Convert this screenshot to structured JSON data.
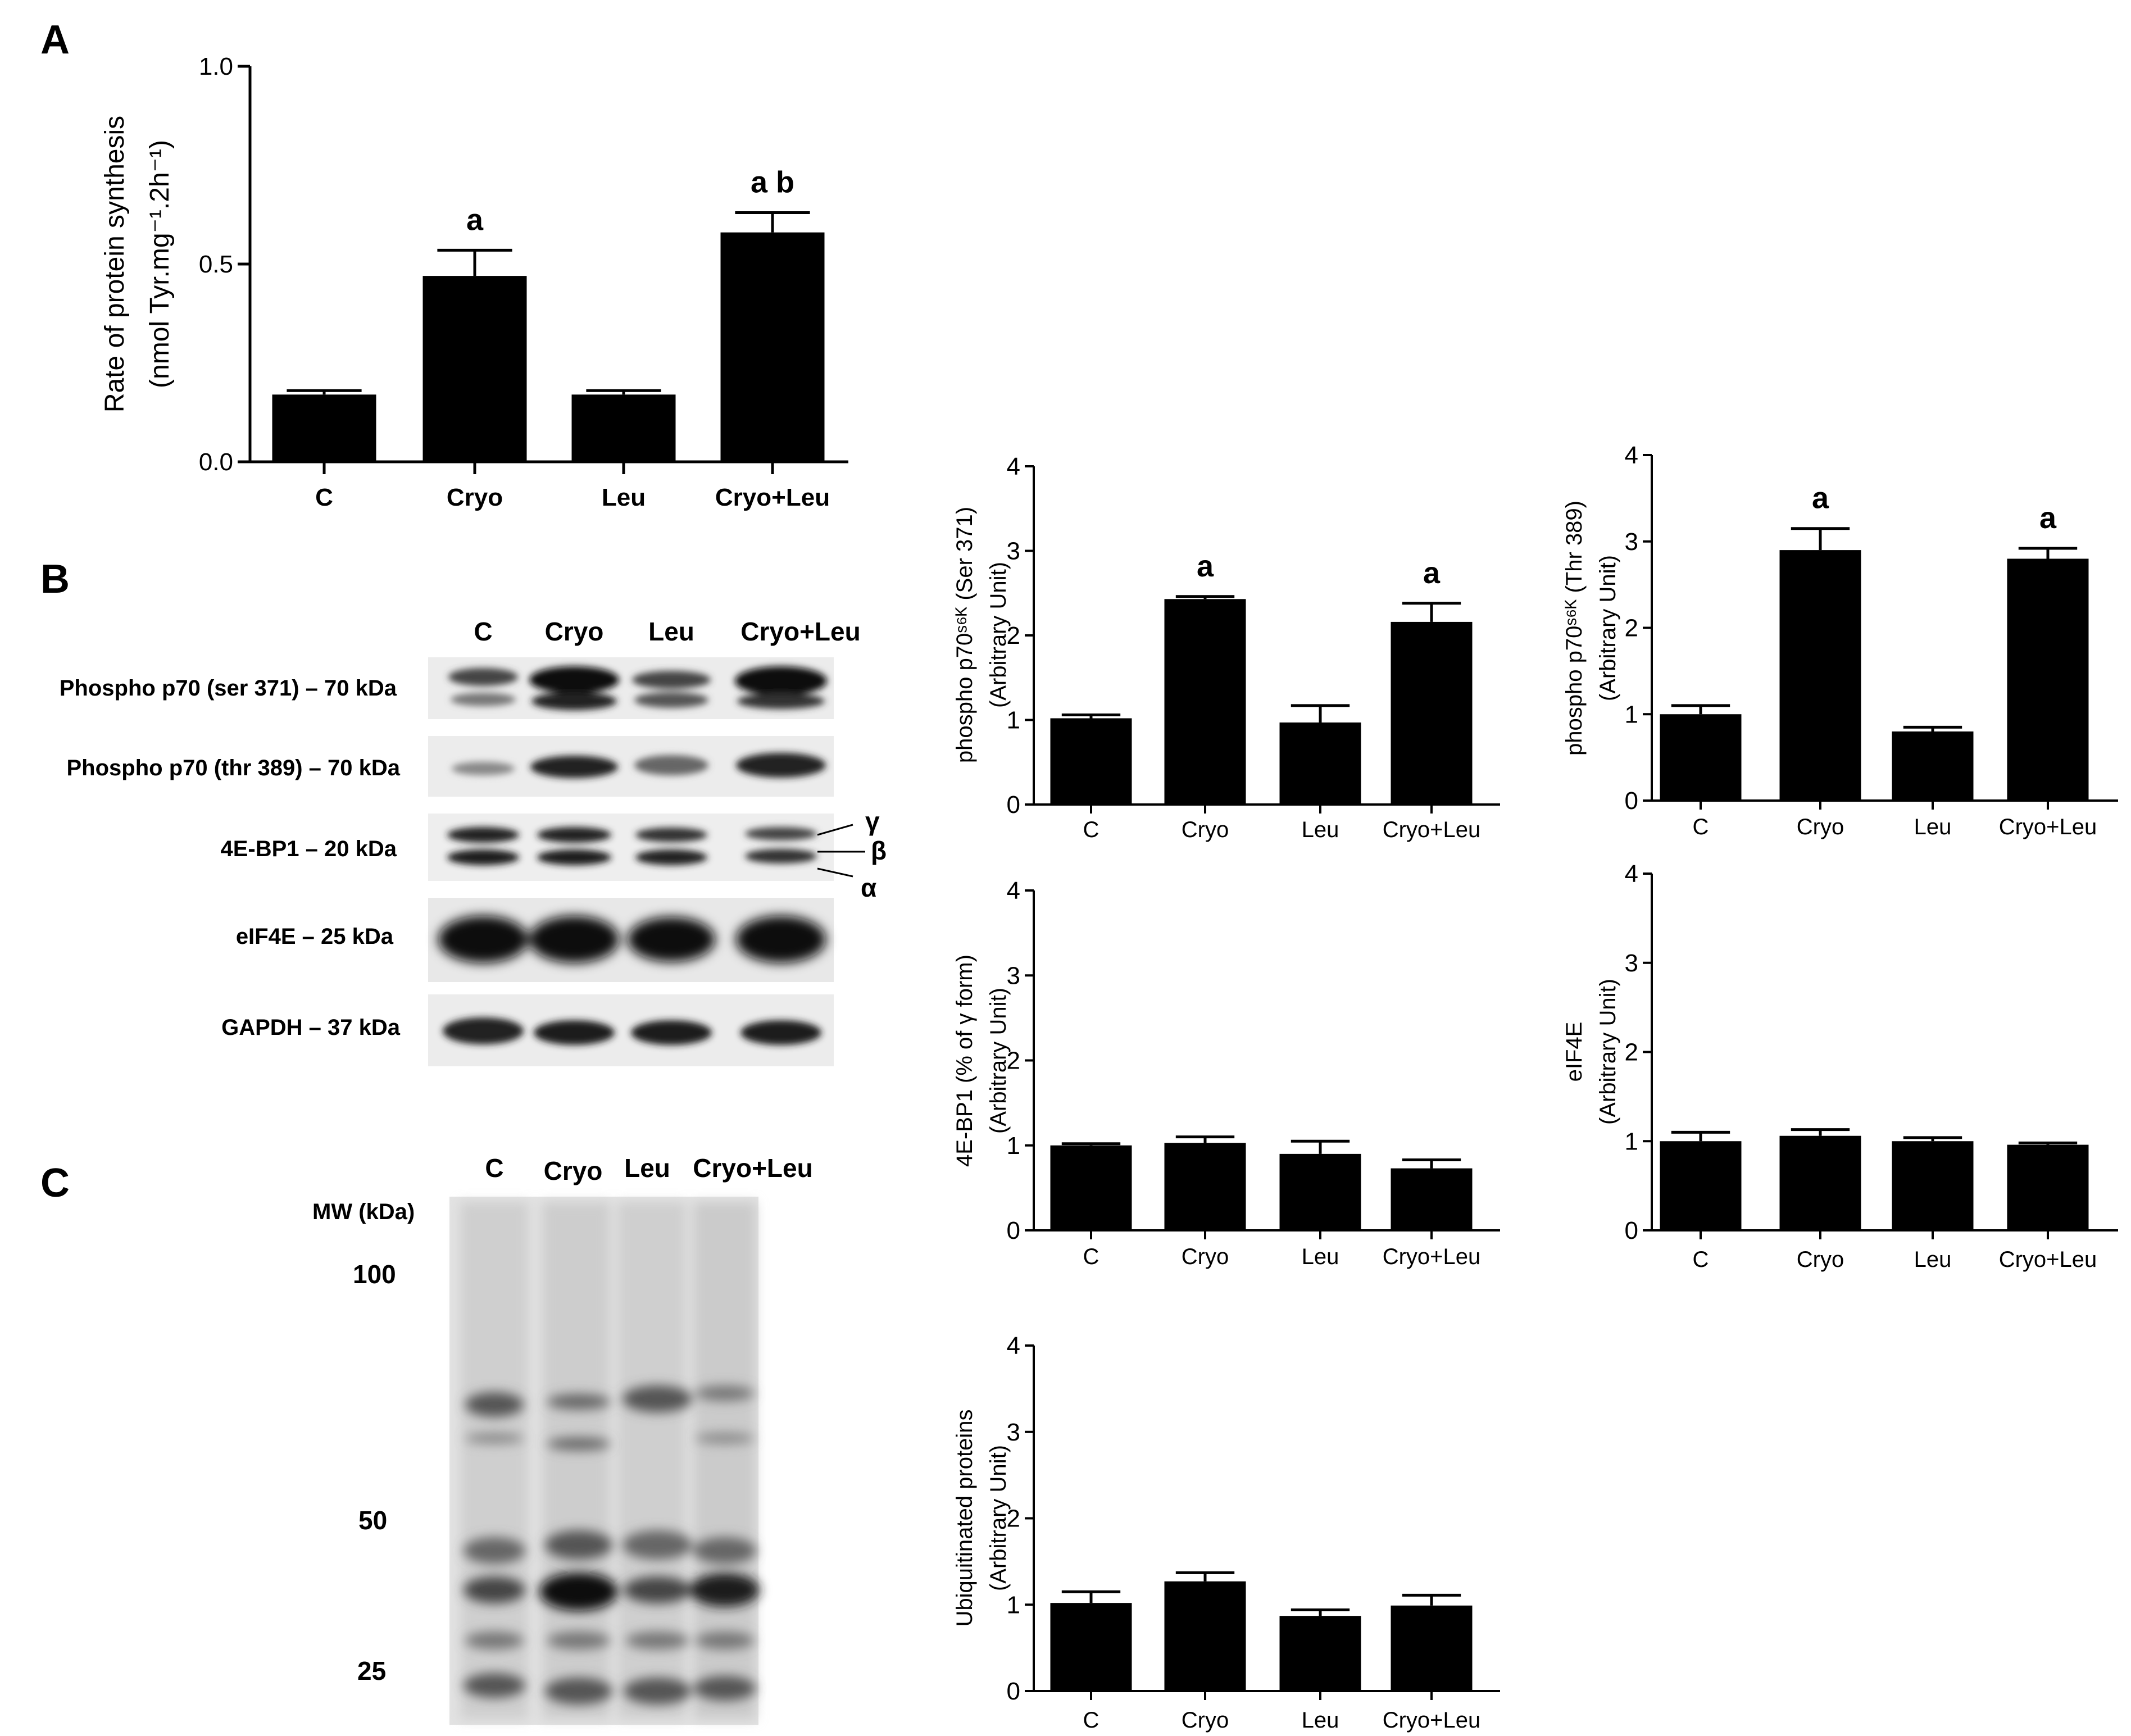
{
  "panels": {
    "a": "A",
    "b": "B",
    "c": "C"
  },
  "categories": [
    "C",
    "Cryo",
    "Leu",
    "Cryo+Leu"
  ],
  "chart_data": [
    {
      "id": "A",
      "type": "bar",
      "categories": [
        "C",
        "Cryo",
        "Leu",
        "Cryo+Leu"
      ],
      "values": [
        0.17,
        0.47,
        0.17,
        0.58
      ],
      "errors": [
        0.01,
        0.065,
        0.01,
        0.05
      ],
      "significance": [
        "",
        "a",
        "",
        "a b"
      ],
      "ylabel_line1": "Rate of protein synthesis",
      "ylabel_line2": "(nmol Tyr.mg⁻¹.2h⁻¹)",
      "ylim": [
        0,
        1.0
      ],
      "yticks": [
        "0.0",
        "0.5",
        "1.0"
      ],
      "ytick_values": [
        0,
        0.5,
        1.0
      ]
    },
    {
      "id": "ser371",
      "type": "bar",
      "categories": [
        "C",
        "Cryo",
        "Leu",
        "Cryo+Leu"
      ],
      "values": [
        1.02,
        2.43,
        0.97,
        2.16
      ],
      "errors": [
        0.04,
        0.03,
        0.2,
        0.22
      ],
      "significance": [
        "",
        "a",
        "",
        "a"
      ],
      "ylabel_line1": "phospho p70ˢ⁶ᴷ (Ser 371)",
      "ylabel_line2": "(Arbitrary Unit)",
      "ylim": [
        0,
        4
      ],
      "yticks": [
        "0",
        "1",
        "2",
        "3",
        "4"
      ],
      "ytick_values": [
        0,
        1,
        2,
        3,
        4
      ]
    },
    {
      "id": "thr389",
      "type": "bar",
      "categories": [
        "C",
        "Cryo",
        "Leu",
        "Cryo+Leu"
      ],
      "values": [
        1.0,
        2.9,
        0.8,
        2.8
      ],
      "errors": [
        0.1,
        0.25,
        0.05,
        0.12
      ],
      "significance": [
        "",
        "a",
        "",
        "a"
      ],
      "ylabel_line1": "phospho p70ˢ⁶ᴷ (Thr 389)",
      "ylabel_line2": "(Arbitrary Unit)",
      "ylim": [
        0,
        4
      ],
      "yticks": [
        "0",
        "1",
        "2",
        "3",
        "4"
      ],
      "ytick_values": [
        0,
        1,
        2,
        3,
        4
      ]
    },
    {
      "id": "4ebp1",
      "type": "bar",
      "categories": [
        "C",
        "Cryo",
        "Leu",
        "Cryo+Leu"
      ],
      "values": [
        1.0,
        1.03,
        0.9,
        0.73
      ],
      "errors": [
        0.02,
        0.07,
        0.15,
        0.1
      ],
      "significance": [
        "",
        "",
        "",
        ""
      ],
      "ylabel_line1": "4E-BP1 (% of γ form)",
      "ylabel_line2": "(Arbitrary Unit)",
      "ylim": [
        0,
        4
      ],
      "yticks": [
        "0",
        "1",
        "2",
        "3",
        "4"
      ],
      "ytick_values": [
        0,
        1,
        2,
        3,
        4
      ]
    },
    {
      "id": "eif4e",
      "type": "bar",
      "categories": [
        "C",
        "Cryo",
        "Leu",
        "Cryo+Leu"
      ],
      "values": [
        1.0,
        1.06,
        1.0,
        0.96
      ],
      "errors": [
        0.1,
        0.07,
        0.04,
        0.02
      ],
      "significance": [
        "",
        "",
        "",
        ""
      ],
      "ylabel_line1": "eIF4E",
      "ylabel_line2": "(Arbitrary Unit)",
      "ylim": [
        0,
        4
      ],
      "yticks": [
        "0",
        "1",
        "2",
        "3",
        "4"
      ],
      "ytick_values": [
        0,
        1,
        2,
        3,
        4
      ]
    },
    {
      "id": "ubiq",
      "type": "bar",
      "categories": [
        "C",
        "Cryo",
        "Leu",
        "Cryo+Leu"
      ],
      "values": [
        1.02,
        1.27,
        0.87,
        0.99
      ],
      "errors": [
        0.13,
        0.1,
        0.07,
        0.12
      ],
      "significance": [
        "",
        "",
        "",
        ""
      ],
      "ylabel_line1": "Ubiquitinated proteins",
      "ylabel_line2": "(Arbitrary Unit)",
      "ylim": [
        0,
        4
      ],
      "yticks": [
        "0",
        "1",
        "2",
        "3",
        "4"
      ],
      "ytick_values": [
        0,
        1,
        2,
        3,
        4
      ]
    }
  ],
  "blot_b": {
    "lanes": [
      "C",
      "Cryo",
      "Leu",
      "Cryo+Leu"
    ],
    "rows": [
      "Phospho p70 (ser 371) – 70 kDa",
      "Phospho p70 (thr 389) – 70 kDa",
      "4E-BP1 – 20 kDa",
      "eIF4E – 25 kDa",
      "GAPDH – 37 kDa"
    ],
    "forms": [
      "γ",
      "β",
      "α"
    ]
  },
  "blot_c": {
    "lanes": [
      "C",
      "Cryo",
      "Leu",
      "Cryo+Leu"
    ],
    "mw_title": "MW (kDa)",
    "mw_marks": [
      "100",
      "50",
      "25"
    ]
  }
}
